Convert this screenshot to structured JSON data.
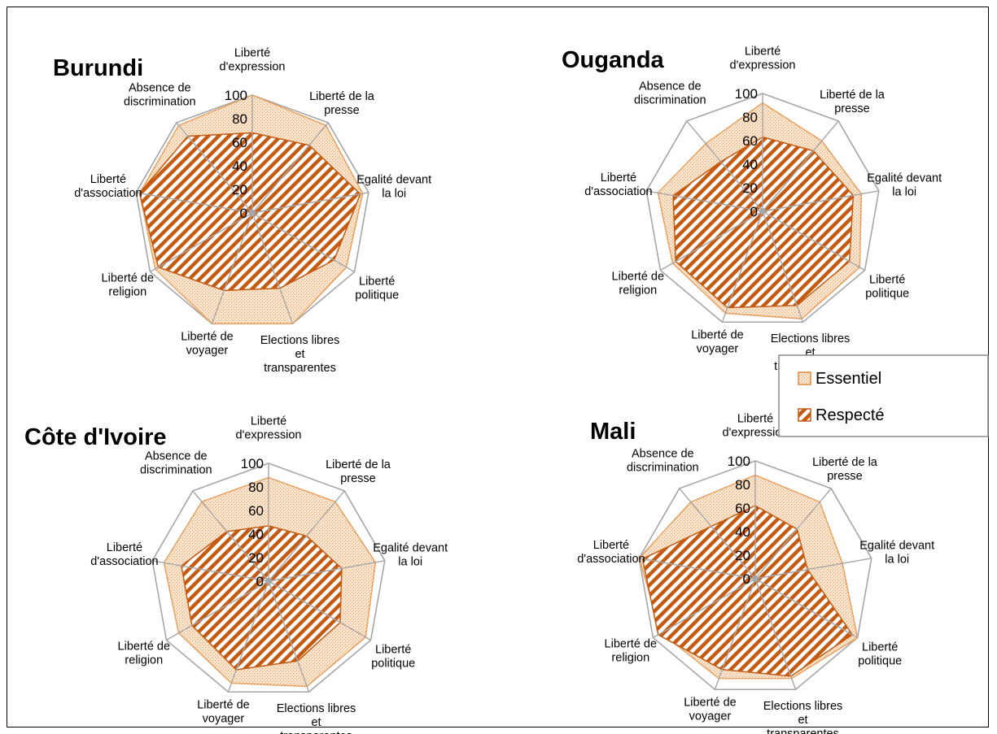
{
  "legend": {
    "items": [
      {
        "label": "Essentiel",
        "pattern": "dots",
        "color": "#e07b1a"
      },
      {
        "label": "Respecté",
        "pattern": "stripes",
        "color": "#c55a11"
      }
    ],
    "placement": "right"
  },
  "colors": {
    "essentiel_stroke": "#e8a160",
    "respecte_stroke": "#c55a11",
    "grid": "#a6a6a6"
  },
  "chart_data": [
    {
      "type": "radar",
      "title": "Burundi",
      "axes": [
        [
          "Liberté",
          "d'expression"
        ],
        [
          "Liberté de la",
          "presse"
        ],
        [
          "Egalité devant",
          "la loi"
        ],
        [
          "Liberté",
          "politique"
        ],
        [
          "Elections libres",
          "et",
          "transparentes"
        ],
        [
          "Liberté de",
          "voyager"
        ],
        [
          "Liberté de",
          "religion"
        ],
        [
          "Liberté",
          "d'association"
        ],
        [
          "Absence de",
          "discrimination"
        ]
      ],
      "ticks": [
        "0",
        "20",
        "40",
        "60",
        "80",
        "100"
      ],
      "range": [
        0,
        100
      ],
      "series": [
        {
          "name": "Essentiel",
          "values": [
            100,
            97,
            95,
            92,
            100,
            100,
            95,
            97,
            97
          ]
        },
        {
          "name": "Respecté",
          "values": [
            68,
            75,
            93,
            80,
            68,
            70,
            92,
            97,
            85
          ]
        }
      ]
    },
    {
      "type": "radar",
      "title": "Ouganda",
      "axes": [
        [
          "Liberté",
          "d'expression"
        ],
        [
          "Liberté de la",
          "presse"
        ],
        [
          "Egalité devant",
          "la loi"
        ],
        [
          "Liberté",
          "politique"
        ],
        [
          "Elections libres",
          "et",
          "transparentes"
        ],
        [
          "Liberté de",
          "voyager"
        ],
        [
          "Liberté de",
          "religion"
        ],
        [
          "Liberté",
          "d'association"
        ],
        [
          "Absence de",
          "discrimination"
        ]
      ],
      "ticks": [
        "0",
        "20",
        "40",
        "60",
        "80",
        "100"
      ],
      "range": [
        0,
        100
      ],
      "series": [
        {
          "name": "Essentiel",
          "values": [
            92,
            78,
            85,
            95,
            97,
            92,
            88,
            90,
            75
          ]
        },
        {
          "name": "Respecté",
          "values": [
            63,
            67,
            78,
            85,
            85,
            87,
            85,
            77,
            55
          ]
        }
      ]
    },
    {
      "type": "radar",
      "title": "Côte d'Ivoire",
      "axes": [
        [
          "Liberté",
          "d'expression"
        ],
        [
          "Liberté de la",
          "presse"
        ],
        [
          "Egalité devant",
          "la loi"
        ],
        [
          "Liberté",
          "politique"
        ],
        [
          "Elections libres",
          "et",
          "transparentes"
        ],
        [
          "Liberté de",
          "voyager"
        ],
        [
          "Liberté de",
          "religion"
        ],
        [
          "Liberté",
          "d'association"
        ],
        [
          "Absence de",
          "discrimination"
        ]
      ],
      "ticks": [
        "0",
        "20",
        "40",
        "60",
        "80",
        "100"
      ],
      "range": [
        0,
        100
      ],
      "series": [
        {
          "name": "Essentiel",
          "values": [
            88,
            88,
            92,
            95,
            95,
            92,
            88,
            90,
            88
          ]
        },
        {
          "name": "Respecté",
          "values": [
            47,
            50,
            63,
            70,
            72,
            80,
            75,
            75,
            55
          ]
        }
      ]
    },
    {
      "type": "radar",
      "title": "Mali",
      "axes": [
        [
          "Liberté",
          "d'expression"
        ],
        [
          "Liberté de la",
          "presse"
        ],
        [
          "Egalité devant",
          "la loi"
        ],
        [
          "Liberté",
          "politique"
        ],
        [
          "Elections libres",
          "et",
          "transparentes"
        ],
        [
          "Liberté de",
          "voyager"
        ],
        [
          "Liberté de",
          "religion"
        ],
        [
          "Liberté",
          "d'association"
        ],
        [
          "Absence de",
          "discrimination"
        ]
      ],
      "ticks": [
        "0",
        "20",
        "40",
        "60",
        "80",
        "100"
      ],
      "range": [
        0,
        100
      ],
      "series": [
        {
          "name": "Essentiel",
          "values": [
            88,
            85,
            75,
            100,
            90,
            90,
            92,
            100,
            85
          ]
        },
        {
          "name": "Respecté",
          "values": [
            62,
            55,
            45,
            95,
            88,
            82,
            95,
            97,
            58
          ]
        }
      ]
    }
  ]
}
